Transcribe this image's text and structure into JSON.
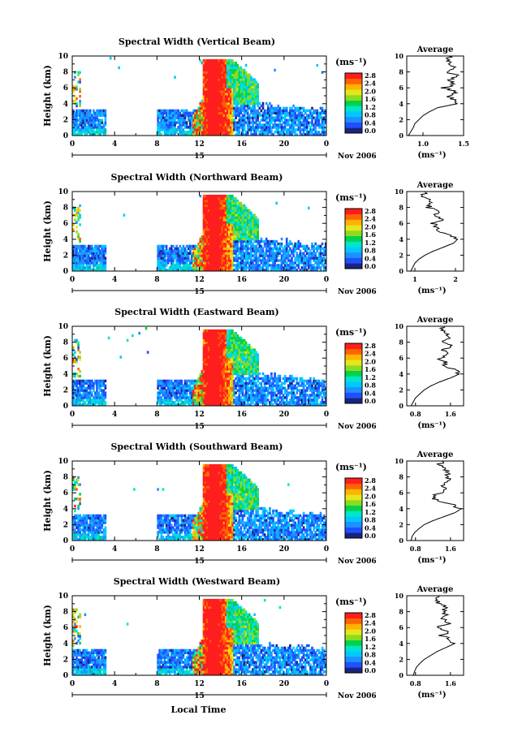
{
  "figure": {
    "xlabel": "Local Time",
    "colorbar_ticks": [
      "2.8",
      "2.4",
      "2.0",
      "1.6",
      "1.2",
      "0.8",
      "0.4",
      "0.0"
    ],
    "colorbar_unit": "(ms⁻¹)",
    "colormap": [
      "#1a237e",
      "#1e50ff",
      "#1e90ff",
      "#00c8ff",
      "#00e6c8",
      "#00d24a",
      "#8cdc1e",
      "#e6e61e",
      "#ffb400",
      "#ff6400",
      "#ff1e1e"
    ],
    "date_label": "Nov 2006",
    "x_day_label": "15",
    "profile_unit": "(ms⁻¹)",
    "profile_title": "Average"
  },
  "chart_data": [
    {
      "type": "heatmap",
      "title": "Spectral Width (Vertical Beam)",
      "ylabel": "Height (km)",
      "xlim": [
        0,
        24
      ],
      "ylim": [
        0,
        10
      ],
      "xticks": [
        "0",
        "4",
        "8",
        "12",
        "16",
        "20",
        "0"
      ],
      "yticks": [
        "0",
        "2",
        "4",
        "6",
        "8",
        "10"
      ],
      "colorbar_range": [
        0,
        2.8
      ],
      "profile": {
        "title": "Average",
        "xlim": [
          0.8,
          1.5
        ],
        "xticks": [
          "1.0",
          "1.5"
        ],
        "heights": [
          0,
          0.5,
          1,
          1.5,
          2,
          2.5,
          3,
          3.5,
          4,
          4.5,
          5,
          5.5,
          6,
          6.5,
          7,
          7.5,
          8,
          8.5,
          9,
          9.5,
          10
        ],
        "values": [
          0.82,
          0.85,
          0.88,
          0.9,
          0.95,
          1.0,
          1.08,
          1.18,
          1.42,
          1.38,
          1.3,
          1.42,
          1.25,
          1.4,
          1.32,
          1.45,
          1.3,
          1.4,
          1.35,
          1.3,
          1.32
        ]
      }
    },
    {
      "type": "heatmap",
      "title": "Spectral Width (Northward Beam)",
      "ylabel": "Height (km)",
      "xlim": [
        0,
        24
      ],
      "ylim": [
        0,
        10
      ],
      "xticks": [
        "0",
        "4",
        "8",
        "12",
        "16",
        "20",
        "0"
      ],
      "yticks": [
        "0",
        "2",
        "4",
        "6",
        "8",
        "10"
      ],
      "colorbar_range": [
        0,
        2.8
      ],
      "profile": {
        "title": "Average",
        "xlim": [
          0.8,
          2.2
        ],
        "xticks": [
          "1",
          "2"
        ],
        "heights": [
          0,
          0.5,
          1,
          1.5,
          2,
          2.5,
          3,
          3.5,
          4,
          4.5,
          5,
          5.5,
          6,
          6.5,
          7,
          7.5,
          8,
          8.5,
          9,
          9.5,
          10
        ],
        "values": [
          0.9,
          0.95,
          1.0,
          1.1,
          1.25,
          1.45,
          1.7,
          1.95,
          2.05,
          1.9,
          1.6,
          1.55,
          1.45,
          1.7,
          1.5,
          1.6,
          1.35,
          1.4,
          1.3,
          1.2,
          1.25
        ]
      }
    },
    {
      "type": "heatmap",
      "title": "Spectral Width (Eastward Beam)",
      "ylabel": "Height (km)",
      "xlim": [
        0,
        24
      ],
      "ylim": [
        0,
        10
      ],
      "xticks": [
        "0",
        "4",
        "8",
        "12",
        "16",
        "20",
        "0"
      ],
      "yticks": [
        "0",
        "2",
        "4",
        "6",
        "8",
        "10"
      ],
      "colorbar_range": [
        0,
        2.8
      ],
      "profile": {
        "title": "Average",
        "xlim": [
          0.6,
          1.9
        ],
        "xticks": [
          "0.8",
          "1.6"
        ],
        "heights": [
          0,
          0.5,
          1,
          1.5,
          2,
          2.5,
          3,
          3.5,
          4,
          4.5,
          5,
          5.5,
          6,
          6.5,
          7,
          7.5,
          8,
          8.5,
          9,
          9.5,
          10
        ],
        "values": [
          0.7,
          0.75,
          0.8,
          0.9,
          1.0,
          1.15,
          1.35,
          1.6,
          1.8,
          1.7,
          1.45,
          1.5,
          1.35,
          1.55,
          1.4,
          1.6,
          1.45,
          1.55,
          1.5,
          1.4,
          1.45
        ]
      }
    },
    {
      "type": "heatmap",
      "title": "Spectral Width (Southward Beam)",
      "ylabel": "Height (km)",
      "xlim": [
        0,
        24
      ],
      "ylim": [
        0,
        10
      ],
      "xticks": [
        "0",
        "4",
        "8",
        "12",
        "16",
        "20",
        "0"
      ],
      "yticks": [
        "0",
        "2",
        "4",
        "6",
        "8",
        "10"
      ],
      "colorbar_range": [
        0,
        2.8
      ],
      "profile": {
        "title": "Average",
        "xlim": [
          0.6,
          1.9
        ],
        "xticks": [
          "0.8",
          "1.6"
        ],
        "heights": [
          0,
          0.5,
          1,
          1.5,
          2,
          2.5,
          3,
          3.5,
          4,
          4.5,
          5,
          5.5,
          6,
          6.5,
          7,
          7.5,
          8,
          8.5,
          9,
          9.5,
          10
        ],
        "values": [
          0.7,
          0.72,
          0.78,
          0.88,
          1.0,
          1.2,
          1.45,
          1.7,
          1.85,
          1.65,
          1.3,
          1.2,
          1.35,
          1.55,
          1.4,
          1.6,
          1.5,
          1.55,
          1.45,
          1.35,
          1.4
        ]
      }
    },
    {
      "type": "heatmap",
      "title": "Spectral Width (Westward Beam)",
      "ylabel": "Height (km)",
      "xlim": [
        0,
        24
      ],
      "ylim": [
        0,
        10
      ],
      "xticks": [
        "0",
        "4",
        "8",
        "12",
        "16",
        "20",
        "0"
      ],
      "yticks": [
        "0",
        "2",
        "4",
        "6",
        "8",
        "10"
      ],
      "colorbar_range": [
        0,
        2.8
      ],
      "profile": {
        "title": "Average",
        "xlim": [
          0.6,
          1.9
        ],
        "xticks": [
          "0.8",
          "1.6"
        ],
        "heights": [
          0,
          0.5,
          1,
          1.5,
          2,
          2.5,
          3,
          3.5,
          4,
          4.5,
          5,
          5.5,
          6,
          6.5,
          7,
          7.5,
          8,
          8.5,
          9,
          9.5,
          10
        ],
        "values": [
          0.75,
          0.78,
          0.82,
          0.9,
          1.0,
          1.15,
          1.3,
          1.5,
          1.7,
          1.6,
          1.4,
          1.55,
          1.3,
          1.6,
          1.45,
          1.5,
          1.4,
          1.55,
          1.35,
          1.3,
          1.35
        ]
      }
    }
  ]
}
